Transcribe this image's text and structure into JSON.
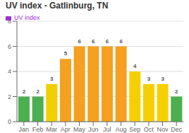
{
  "chart_data": {
    "type": "bar",
    "title": "UV index - Gatlinburg, TN",
    "categories": [
      "Jan",
      "Feb",
      "Mar",
      "Apr",
      "May",
      "Jun",
      "Jul",
      "Aug",
      "Sep",
      "Oct",
      "Nov",
      "Dec"
    ],
    "series": [
      {
        "name": "UV index",
        "color": "#9b30d0",
        "colors": [
          "#4caf50",
          "#4caf50",
          "#f0d000",
          "#f5a020",
          "#f5a020",
          "#f5a020",
          "#f5a020",
          "#f5a020",
          "#f5d000",
          "#f5d000",
          "#f5d000",
          "#4caf50"
        ],
        "values": [
          2,
          2,
          3,
          5,
          6,
          6,
          6,
          6,
          4,
          3,
          3,
          2
        ]
      }
    ],
    "ylim": [
      0,
      8
    ],
    "yticks": [
      0,
      2,
      4,
      6,
      8
    ],
    "grid": true,
    "data_labels": true,
    "legend": "upper left"
  }
}
